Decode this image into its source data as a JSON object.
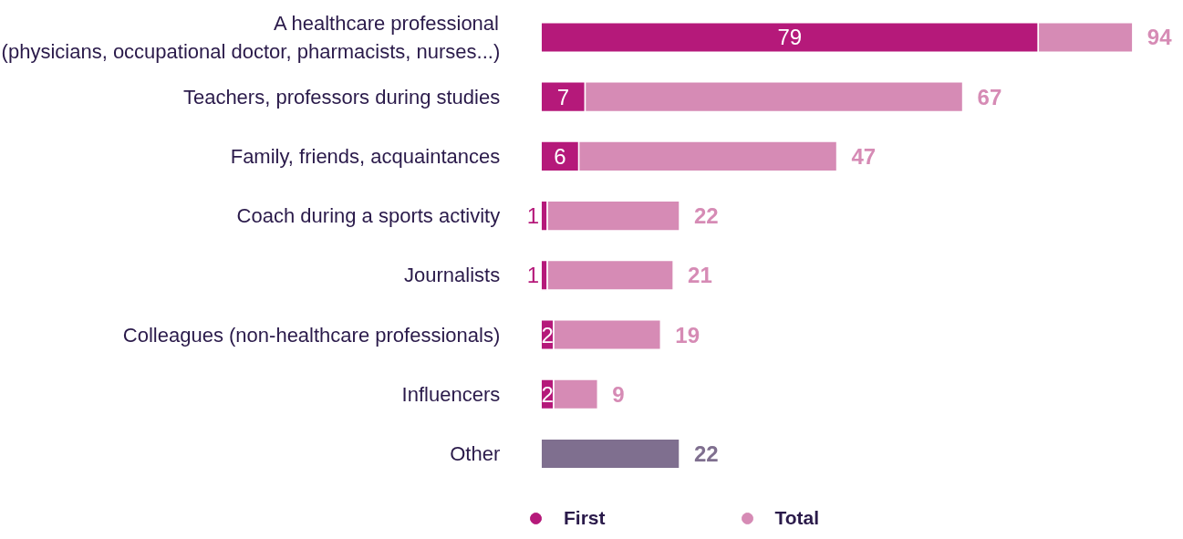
{
  "chart_data": {
    "type": "bar",
    "orientation": "horizontal",
    "stacked": true,
    "legend": "bottom",
    "grid": false,
    "categories": [
      "A healthcare professional\n(physicians, occupational doctor, pharmacists, nurses...)",
      "Teachers, professors during studies",
      "Family, friends, acquaintances",
      "Coach during a sports activity",
      "Journalists",
      "Colleagues (non-healthcare professionals)",
      "Influencers",
      "Other"
    ],
    "series": [
      {
        "name": "First",
        "color": "#b5197a",
        "values": [
          79,
          7,
          6,
          1,
          1,
          2,
          2,
          null
        ],
        "value_labels": [
          "79",
          "7",
          "6",
          "1",
          "1",
          "2",
          "2",
          null
        ]
      },
      {
        "name": "Total",
        "color": "#d68bb5",
        "colors": [
          "#d68bb5",
          "#d68bb5",
          "#d68bb5",
          "#d68bb5",
          "#d68bb5",
          "#d68bb5",
          "#d68bb5",
          "#7f6f8f"
        ],
        "values": [
          15,
          60,
          41,
          21,
          20,
          17,
          7,
          22
        ]
      }
    ],
    "totals": [
      "94",
      "67",
      "47",
      "22",
      "21",
      "19",
      "9",
      "22"
    ]
  }
}
